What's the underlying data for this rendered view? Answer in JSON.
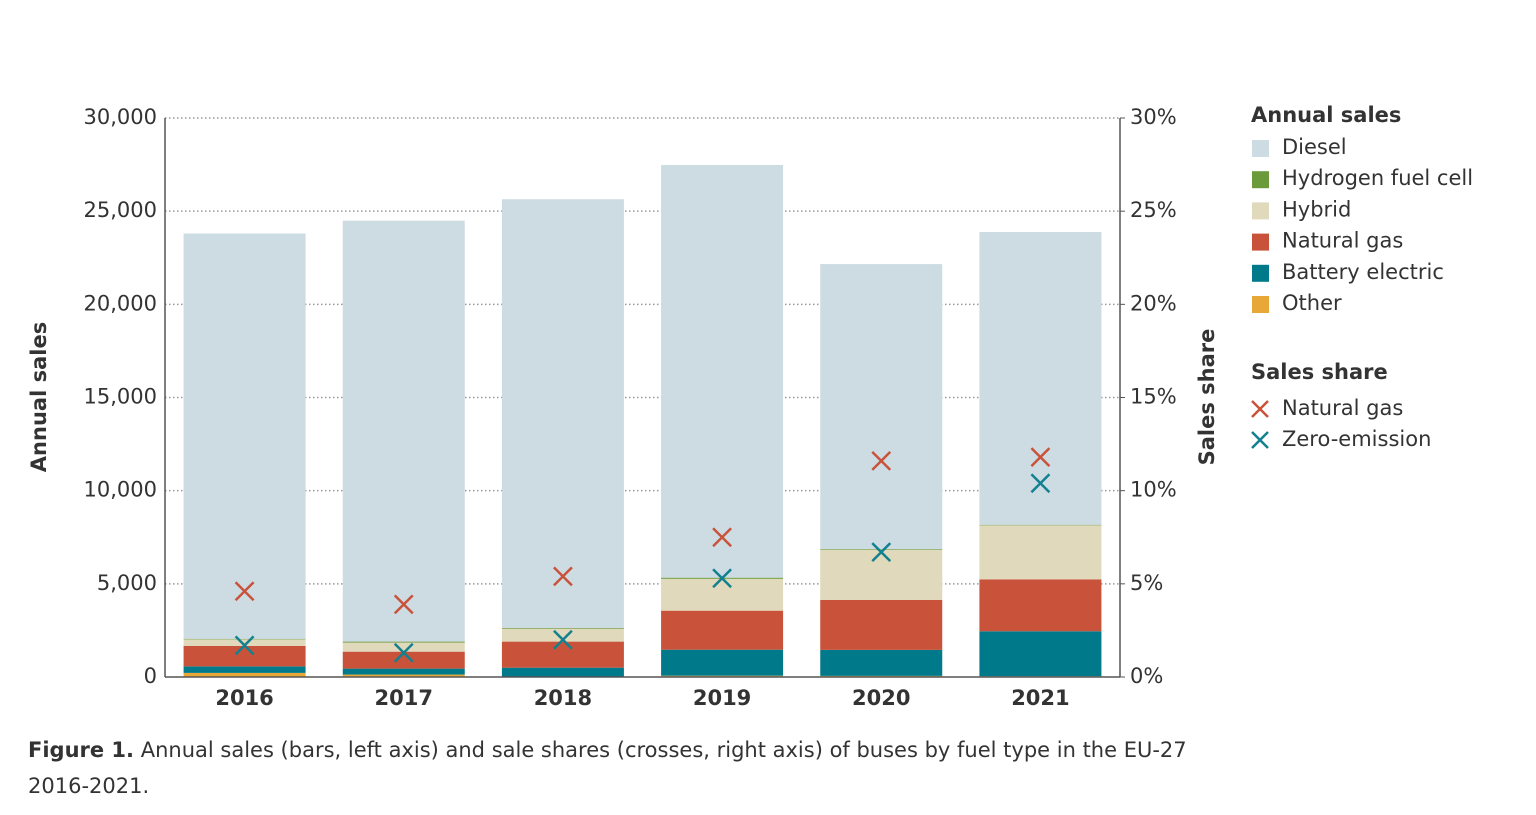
{
  "chart_data": {
    "type": "bar",
    "stacked": true,
    "x_label": "",
    "y_label": "Annual sales",
    "y2_label": "Sales share",
    "categories": [
      "2016",
      "2017",
      "2018",
      "2019",
      "2020",
      "2021"
    ],
    "legend_title": "Annual sales",
    "legend2_title": "Sales share",
    "series": [
      {
        "name": "Diesel",
        "color": "#cddbe3",
        "values": [
          21750,
          22590,
          23005,
          22150,
          15300,
          15710
        ]
      },
      {
        "name": "Hydrogen fuel cell",
        "color": "#6a9a3a",
        "values": [
          30,
          50,
          40,
          60,
          40,
          30
        ]
      },
      {
        "name": "Hybrid",
        "color": "#e0d9bb",
        "values": [
          350,
          490,
          695,
          1710,
          2680,
          2900
        ]
      },
      {
        "name": "Natural gas",
        "color": "#c9533a",
        "values": [
          1100,
          910,
          1400,
          2095,
          2685,
          2785
        ]
      },
      {
        "name": "Battery electric",
        "color": "#007a8a",
        "values": [
          350,
          320,
          480,
          1395,
          1395,
          2415
        ]
      },
      {
        "name": "Other",
        "color": "#e8a838",
        "values": [
          220,
          130,
          20,
          70,
          60,
          40
        ]
      }
    ],
    "share_series": [
      {
        "name": "Natural gas",
        "color": "#c9533a",
        "type": "scatter",
        "axis": "y2",
        "values": [
          4.6,
          3.9,
          5.4,
          7.5,
          11.6,
          11.8
        ]
      },
      {
        "name": "Zero-emission",
        "color": "#13808f",
        "type": "scatter",
        "axis": "y2",
        "values": [
          1.7,
          1.3,
          2.0,
          5.3,
          6.7,
          10.4
        ]
      }
    ],
    "ylim": [
      0,
      30000
    ],
    "yticks": [
      0,
      {
        "value": 5000,
        "label": "5,000"
      },
      {
        "value": 10000,
        "label": "10,000"
      },
      {
        "value": 15000,
        "label": "15,000"
      },
      {
        "value": 20000,
        "label": "20,000"
      },
      {
        "value": 25000,
        "label": "25,000"
      },
      {
        "value": 30000,
        "label": "30,000"
      }
    ],
    "y2lim": [
      0,
      30
    ],
    "y2ticks": [
      {
        "value": 0,
        "label": "0%"
      },
      {
        "value": 5,
        "label": "5%"
      },
      {
        "value": 10,
        "label": "10%"
      },
      {
        "value": 15,
        "label": "15%"
      },
      {
        "value": 20,
        "label": "20%"
      },
      {
        "value": 25,
        "label": "25%"
      },
      {
        "value": 30,
        "label": "30%"
      }
    ],
    "grid": true,
    "caption": {
      "label": "Figure 1.",
      "text": " Annual sales (bars, left axis) and sale shares (crosses, right axis) of buses by fuel type in the EU-27 2016-2021."
    }
  }
}
